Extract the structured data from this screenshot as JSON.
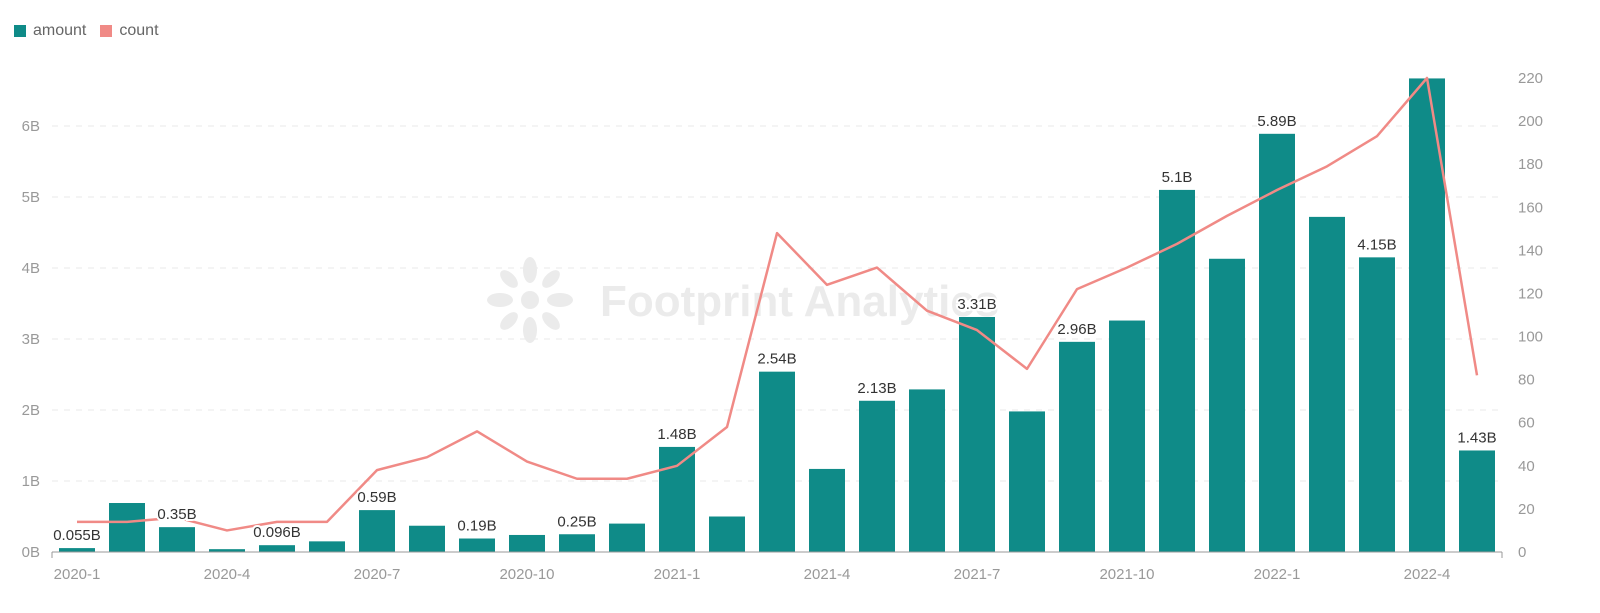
{
  "legend": {
    "items": [
      {
        "label": "amount",
        "color": "#0f8b88"
      },
      {
        "label": "count",
        "color": "#f08a86"
      }
    ]
  },
  "watermark": "Footprint Analytics",
  "chart_data": {
    "type": "bar",
    "title": "",
    "xlabel": "",
    "ylabel": "",
    "categories": [
      "2020-1",
      "2020-2",
      "2020-3",
      "2020-4",
      "2020-5",
      "2020-6",
      "2020-7",
      "2020-8",
      "2020-9",
      "2020-10",
      "2020-11",
      "2020-12",
      "2021-1",
      "2021-2",
      "2021-3",
      "2021-4",
      "2021-5",
      "2021-6",
      "2021-7",
      "2021-8",
      "2021-9",
      "2021-10",
      "2021-11",
      "2021-12",
      "2022-1",
      "2022-2",
      "2022-3",
      "2022-4",
      "2022-5"
    ],
    "x_tick_labels": [
      "2020-1",
      "2020-4",
      "2020-7",
      "2020-10",
      "2021-1",
      "2021-4",
      "2021-7",
      "2021-10",
      "2022-1",
      "2022-4"
    ],
    "series": [
      {
        "name": "amount",
        "type": "bar",
        "axis": "left",
        "unit": "B",
        "color": "#0f8b88",
        "values": [
          0.055,
          0.69,
          0.35,
          0.04,
          0.096,
          0.15,
          0.59,
          0.37,
          0.19,
          0.24,
          0.25,
          0.4,
          1.48,
          0.5,
          2.54,
          1.17,
          2.13,
          2.29,
          3.31,
          1.98,
          2.96,
          3.26,
          5.1,
          4.13,
          5.89,
          4.72,
          4.15,
          6.67,
          1.43
        ],
        "data_labels": [
          "0.055B",
          null,
          "0.35B",
          null,
          "0.096B",
          null,
          "0.59B",
          null,
          "0.19B",
          null,
          "0.25B",
          null,
          "1.48B",
          null,
          "2.54B",
          null,
          "2.13B",
          null,
          "3.31B",
          null,
          "2.96B",
          null,
          "5.1B",
          null,
          "5.89B",
          null,
          "4.15B",
          null,
          "1.43B"
        ]
      },
      {
        "name": "count",
        "type": "line",
        "axis": "right",
        "color": "#f08a86",
        "values": [
          14,
          14,
          16,
          10,
          14,
          14,
          38,
          44,
          56,
          42,
          34,
          34,
          40,
          58,
          148,
          124,
          132,
          112,
          103,
          85,
          122,
          132,
          143,
          156,
          168,
          179,
          193,
          220,
          82
        ]
      }
    ],
    "y_left": {
      "ticks": [
        "0B",
        "1B",
        "2B",
        "3B",
        "4B",
        "5B",
        "6B"
      ],
      "range": [
        0,
        6.7
      ]
    },
    "y_right": {
      "ticks": [
        "0",
        "20",
        "40",
        "60",
        "80",
        "100",
        "120",
        "140",
        "160",
        "180",
        "200",
        "220"
      ],
      "range": [
        0,
        220
      ]
    },
    "grid": true,
    "legend_position": "top-left"
  }
}
